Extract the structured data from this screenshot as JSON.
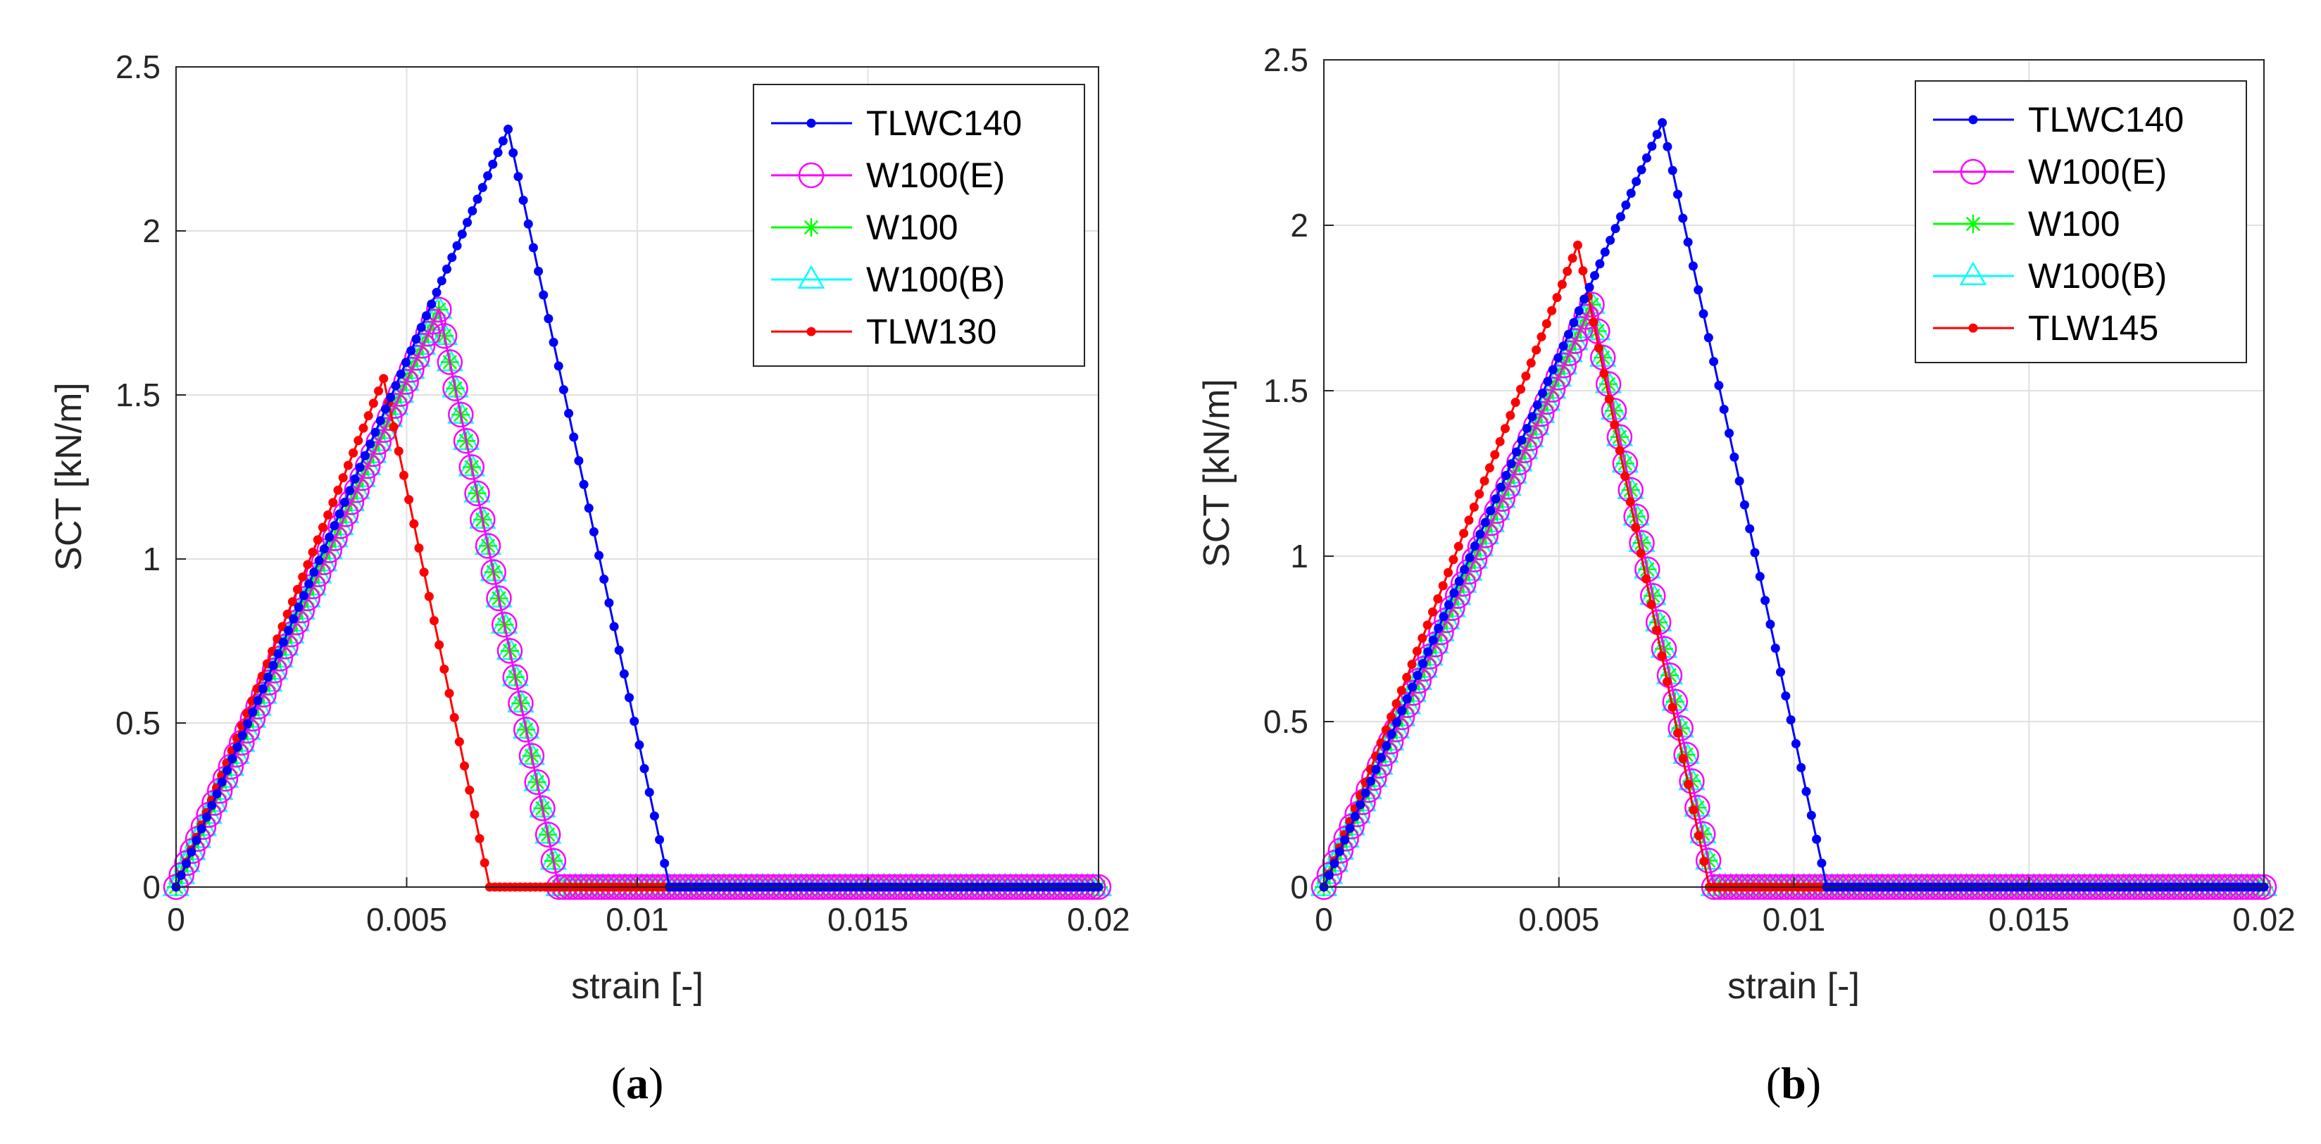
{
  "panels": [
    {
      "caption_open": "(",
      "caption_letter": "a",
      "caption_close": ")",
      "xlabel": "strain [-]",
      "ylabel": "SCT [kN/m]",
      "xticks": [
        "0",
        "0.005",
        "0.01",
        "0.015",
        "0.02"
      ],
      "yticks": [
        "0",
        "0.5",
        "1",
        "1.5",
        "2",
        "2.5"
      ],
      "legend": [
        "TLWC140",
        "W100(E)",
        "W100",
        "W100(B)",
        "TLW130"
      ]
    },
    {
      "caption_open": "(",
      "caption_letter": "b",
      "caption_close": ")",
      "xlabel": "strain [-]",
      "ylabel": "SCT [kN/m]",
      "xticks": [
        "0",
        "0.005",
        "0.01",
        "0.015",
        "0.02"
      ],
      "yticks": [
        "0",
        "0.5",
        "1",
        "1.5",
        "2",
        "2.5"
      ],
      "legend": [
        "TLWC140",
        "W100(E)",
        "W100",
        "W100(B)",
        "TLW145"
      ]
    }
  ],
  "chart_data": [
    {
      "type": "line",
      "title": "(a)",
      "xlabel": "strain [-]",
      "ylabel": "SCT [kN/m]",
      "xlim": [
        0,
        0.02
      ],
      "ylim": [
        0,
        2.5
      ],
      "grid": true,
      "legend_position": "top-right",
      "series": [
        {
          "name": "TLWC140",
          "color": "#0000ff",
          "marker": "dot",
          "x": [
            0,
            0.0072,
            0.0107,
            0.02
          ],
          "y": [
            0,
            2.31,
            0,
            0
          ]
        },
        {
          "name": "W100(E)",
          "color": "#ff00ff",
          "marker": "circle",
          "x": [
            0,
            0.0057,
            0.0083,
            0.02
          ],
          "y": [
            0,
            1.76,
            0,
            0
          ]
        },
        {
          "name": "W100",
          "color": "#00ff00",
          "marker": "asterisk",
          "x": [
            0,
            0.0057,
            0.0083,
            0.02
          ],
          "y": [
            0,
            1.76,
            0,
            0
          ]
        },
        {
          "name": "W100(B)",
          "color": "#00ffff",
          "marker": "triangle",
          "x": [
            0,
            0.0057,
            0.0083,
            0.02
          ],
          "y": [
            0,
            1.76,
            0,
            0
          ]
        },
        {
          "name": "TLW130",
          "color": "#ff0000",
          "marker": "dot",
          "x": [
            0,
            0.0045,
            0.0068,
            0.02
          ],
          "y": [
            0,
            1.55,
            0,
            0
          ]
        }
      ]
    },
    {
      "type": "line",
      "title": "(b)",
      "xlabel": "strain [-]",
      "ylabel": "SCT [kN/m]",
      "xlim": [
        0,
        0.02
      ],
      "ylim": [
        0,
        2.5
      ],
      "grid": true,
      "legend_position": "top-right",
      "series": [
        {
          "name": "TLWC140",
          "color": "#0000ff",
          "marker": "dot",
          "x": [
            0,
            0.0072,
            0.0107,
            0.02
          ],
          "y": [
            0,
            2.31,
            0,
            0
          ]
        },
        {
          "name": "W100(E)",
          "color": "#ff00ff",
          "marker": "circle",
          "x": [
            0,
            0.0057,
            0.0083,
            0.02
          ],
          "y": [
            0,
            1.76,
            0,
            0
          ]
        },
        {
          "name": "W100",
          "color": "#00ff00",
          "marker": "asterisk",
          "x": [
            0,
            0.0057,
            0.0083,
            0.02
          ],
          "y": [
            0,
            1.76,
            0,
            0
          ]
        },
        {
          "name": "W100(B)",
          "color": "#00ffff",
          "marker": "triangle",
          "x": [
            0,
            0.0057,
            0.0083,
            0.02
          ],
          "y": [
            0,
            1.76,
            0,
            0
          ]
        },
        {
          "name": "TLW145",
          "color": "#ff0000",
          "marker": "dot",
          "x": [
            0,
            0.0054,
            0.0082,
            0.02
          ],
          "y": [
            0,
            1.94,
            0,
            0
          ]
        }
      ]
    }
  ]
}
